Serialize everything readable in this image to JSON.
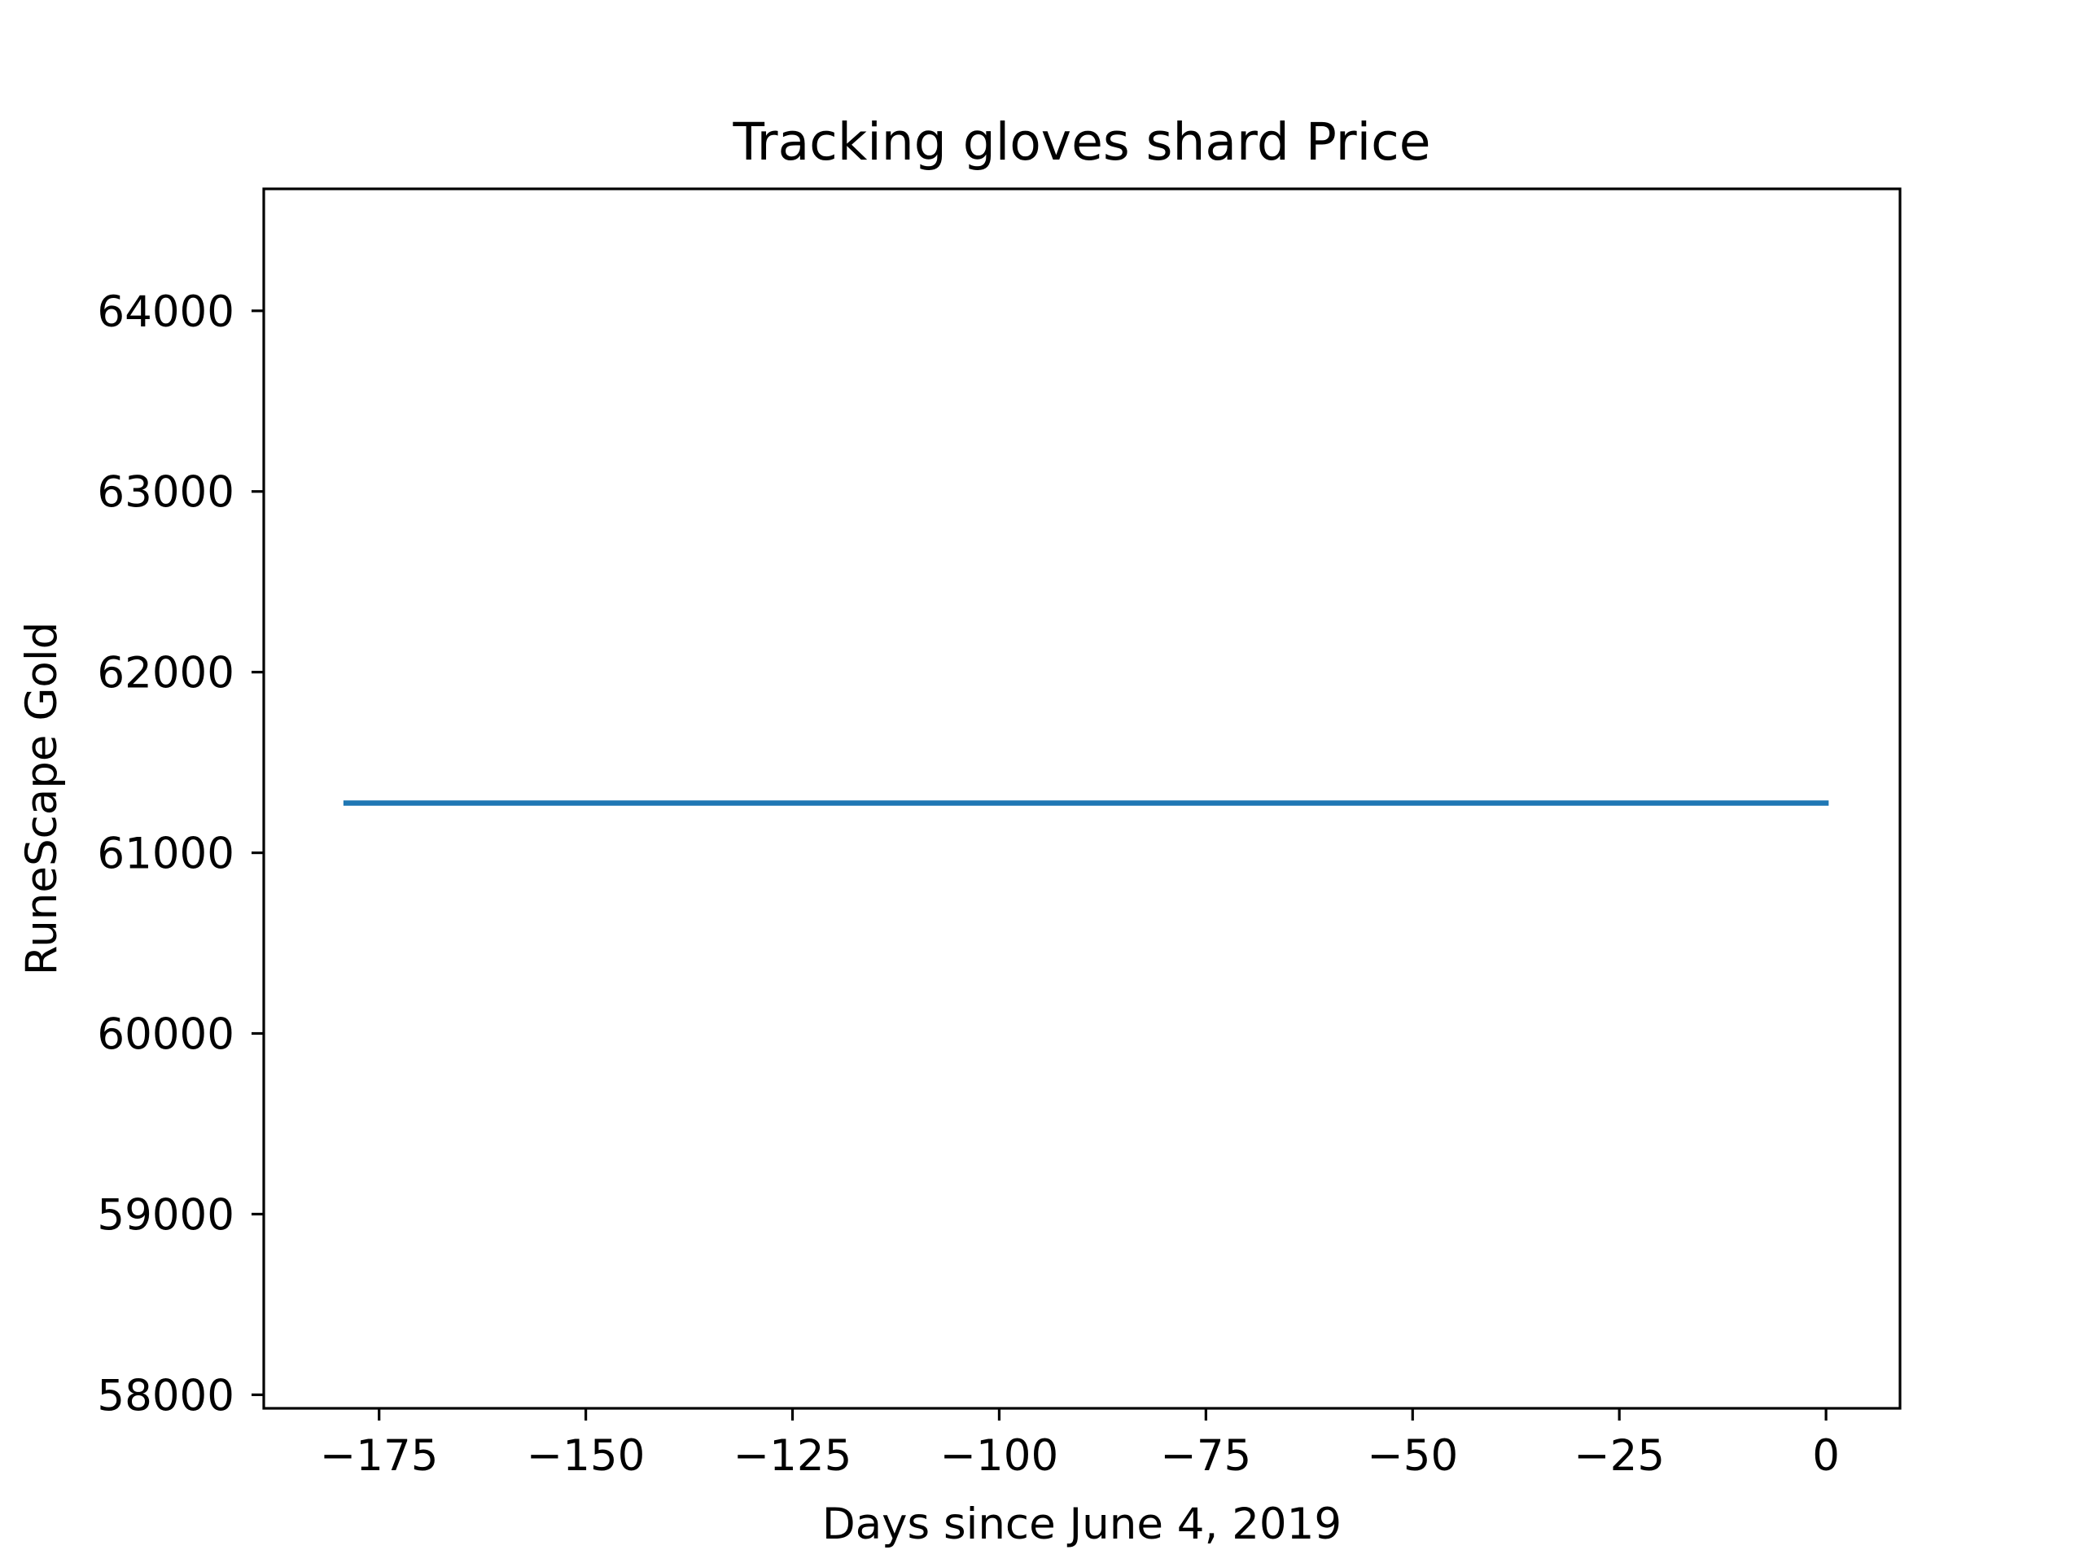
{
  "chart_data": {
    "type": "line",
    "title": "Tracking gloves shard Price",
    "xlabel": "Days since June 4, 2019",
    "ylabel": "RuneScape Gold",
    "xlim": [
      -188.95,
      8.95
    ],
    "ylim": [
      57925,
      64675
    ],
    "grid": false,
    "x_ticks": [
      -175,
      -150,
      -125,
      -100,
      -75,
      -50,
      -25,
      0
    ],
    "x_tick_labels": [
      "−175",
      "−150",
      "−125",
      "−100",
      "−75",
      "−50",
      "−25",
      "0"
    ],
    "y_ticks": [
      58000,
      59000,
      60000,
      61000,
      62000,
      63000,
      64000
    ],
    "y_tick_labels": [
      "58000",
      "59000",
      "60000",
      "61000",
      "62000",
      "63000",
      "64000"
    ],
    "series": [
      {
        "name": "Tracking gloves shard",
        "color": "#1f77b4",
        "x": [
          -179,
          0
        ],
        "y": [
          61275,
          61275
        ]
      }
    ]
  }
}
